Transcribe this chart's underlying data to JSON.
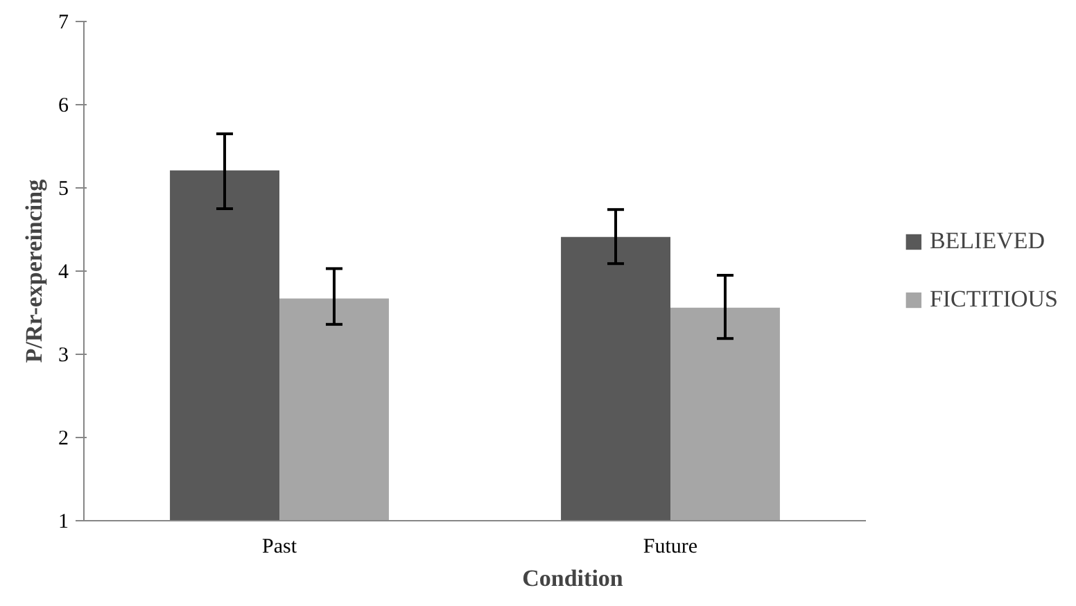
{
  "chart_data": {
    "type": "bar",
    "xlabel": "Condition",
    "ylabel": "P/Rr-expereincing",
    "categories": [
      "Past",
      "Future"
    ],
    "series": [
      {
        "name": "BELIEVED",
        "color": "#595959",
        "values": [
          5.21,
          4.41
        ],
        "errors": [
          [
            4.75,
            5.65
          ],
          [
            4.09,
            4.74
          ]
        ]
      },
      {
        "name": "FICTITIOUS",
        "color": "#a6a6a6",
        "values": [
          3.67,
          3.56
        ],
        "errors": [
          [
            3.36,
            4.03
          ],
          [
            3.19,
            3.95
          ]
        ]
      }
    ],
    "ylim": [
      1,
      7
    ],
    "yticks": [
      1,
      2,
      3,
      4,
      5,
      6,
      7
    ],
    "grid": false,
    "legend": "right"
  }
}
